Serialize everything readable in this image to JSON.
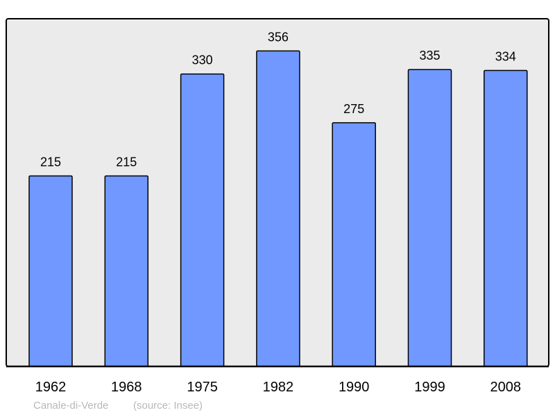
{
  "chart_data": {
    "type": "bar",
    "title": "",
    "xlabel": "",
    "ylabel": "",
    "categories": [
      "1962",
      "1968",
      "1975",
      "1982",
      "1990",
      "1999",
      "2008"
    ],
    "values": [
      215,
      215,
      330,
      356,
      275,
      335,
      334
    ],
    "ylim": [
      0,
      392
    ],
    "grid": false,
    "data_labels": true,
    "colors": {
      "bar": "#7098ff",
      "bar_stroke": "#000000",
      "background": "#ebebeb",
      "footer_text": "#b8b8b8"
    }
  },
  "footer": {
    "place": "Canale-di-Verde",
    "source": "(source: Insee)"
  }
}
